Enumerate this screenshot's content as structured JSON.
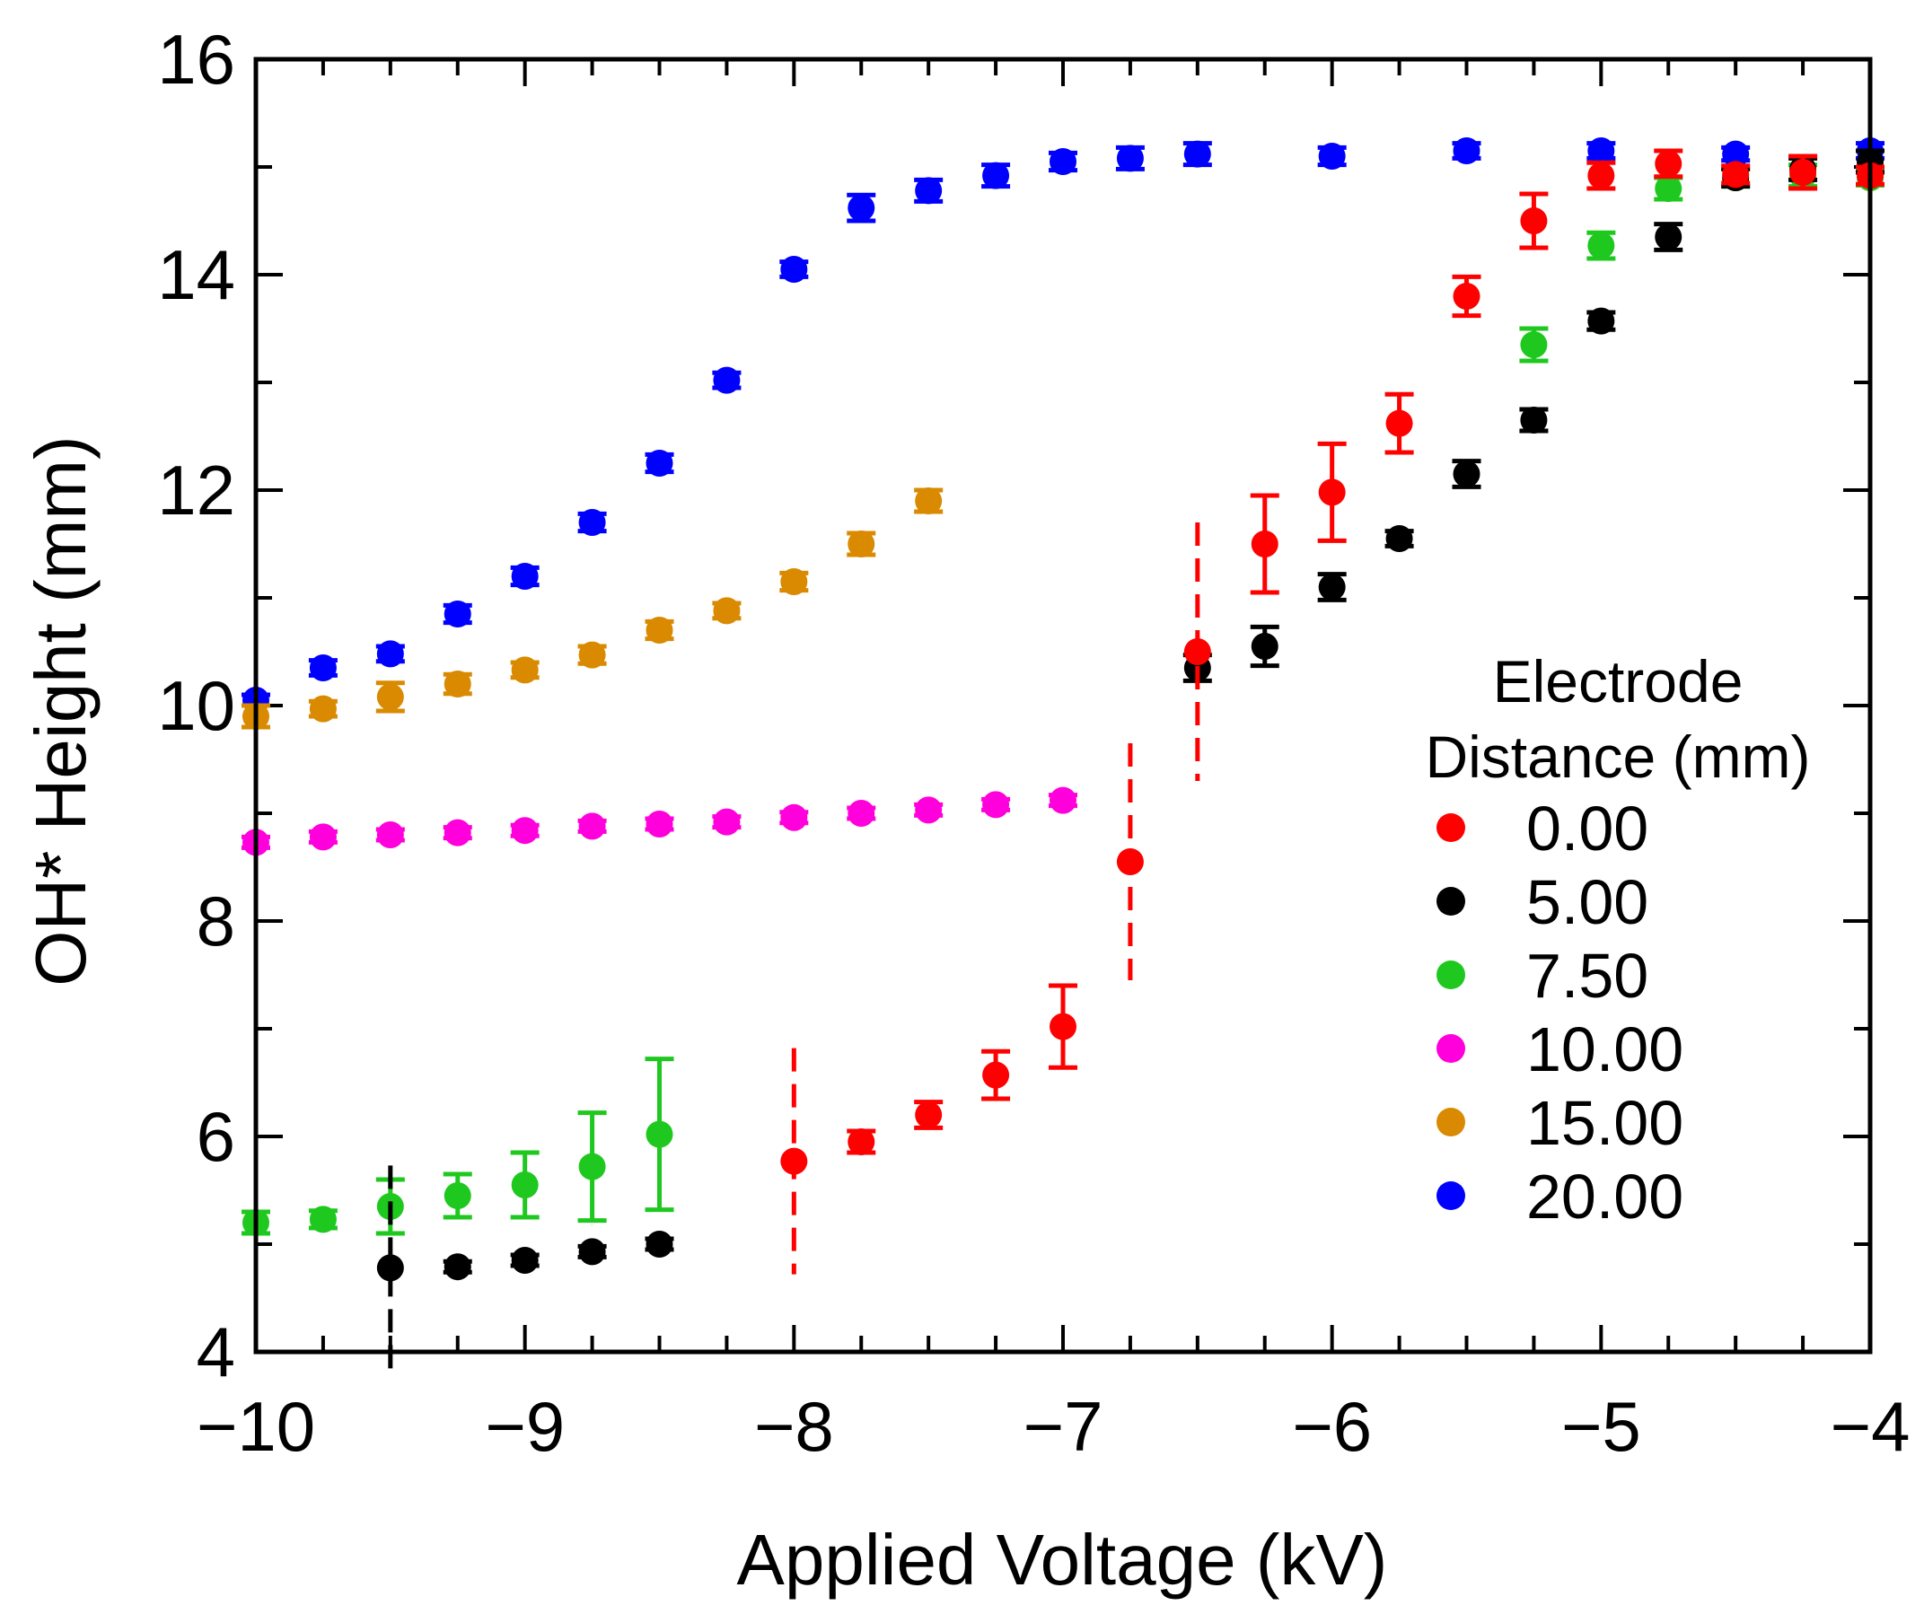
{
  "chart_data": {
    "type": "scatter",
    "xlabel": "Applied Voltage (kV)",
    "ylabel": "OH* Height (mm)",
    "xlim": [
      -10,
      -4
    ],
    "ylim": [
      4,
      16
    ],
    "x_major_ticks": [
      -10,
      -9,
      -8,
      -7,
      -6,
      -5,
      -4
    ],
    "x_tick_labels": [
      "−10",
      "−9",
      "−8",
      "−7",
      "−6",
      "−5",
      "−4"
    ],
    "y_major_ticks": [
      4,
      6,
      8,
      10,
      12,
      14,
      16
    ],
    "y_tick_labels": [
      "4",
      "6",
      "8",
      "10",
      "12",
      "14",
      "16"
    ],
    "legend": {
      "title_lines": [
        "Electrode",
        "Distance (mm)"
      ],
      "position": "right"
    },
    "series": [
      {
        "name": "20.00",
        "color": "#0000ff",
        "points": [
          {
            "x": -10.0,
            "y": 10.05,
            "err": 0.05
          },
          {
            "x": -9.75,
            "y": 10.35,
            "err": 0.07
          },
          {
            "x": -9.5,
            "y": 10.48,
            "err": 0.07
          },
          {
            "x": -9.25,
            "y": 10.85,
            "err": 0.08
          },
          {
            "x": -9.0,
            "y": 11.2,
            "err": 0.08
          },
          {
            "x": -8.75,
            "y": 11.7,
            "err": 0.08
          },
          {
            "x": -8.5,
            "y": 12.25,
            "err": 0.08
          },
          {
            "x": -8.25,
            "y": 13.02,
            "err": 0.07
          },
          {
            "x": -8.0,
            "y": 14.05,
            "err": 0.07
          },
          {
            "x": -7.75,
            "y": 14.62,
            "err": 0.12
          },
          {
            "x": -7.5,
            "y": 14.78,
            "err": 0.1
          },
          {
            "x": -7.25,
            "y": 14.92,
            "err": 0.1
          },
          {
            "x": -7.0,
            "y": 15.05,
            "err": 0.08
          },
          {
            "x": -6.75,
            "y": 15.08,
            "err": 0.1
          },
          {
            "x": -6.5,
            "y": 15.12,
            "err": 0.1
          },
          {
            "x": -6.0,
            "y": 15.1,
            "err": 0.08
          },
          {
            "x": -5.5,
            "y": 15.15,
            "err": 0.07
          },
          {
            "x": -5.0,
            "y": 15.15,
            "err": 0.07
          },
          {
            "x": -4.5,
            "y": 15.12,
            "err": 0.06
          },
          {
            "x": -4.0,
            "y": 15.15,
            "err": 0.07
          }
        ]
      },
      {
        "name": "15.00",
        "color": "#d98a00",
        "points": [
          {
            "x": -10.0,
            "y": 9.9,
            "err": 0.1
          },
          {
            "x": -9.75,
            "y": 9.97,
            "err": 0.07
          },
          {
            "x": -9.5,
            "y": 10.08,
            "err": 0.13
          },
          {
            "x": -9.25,
            "y": 10.2,
            "err": 0.09
          },
          {
            "x": -9.0,
            "y": 10.33,
            "err": 0.07
          },
          {
            "x": -8.75,
            "y": 10.47,
            "err": 0.08
          },
          {
            "x": -8.5,
            "y": 10.7,
            "err": 0.08
          },
          {
            "x": -8.25,
            "y": 10.88,
            "err": 0.07
          },
          {
            "x": -8.0,
            "y": 11.15,
            "err": 0.08
          },
          {
            "x": -7.75,
            "y": 11.5,
            "err": 0.1
          },
          {
            "x": -7.5,
            "y": 11.9,
            "err": 0.1
          }
        ]
      },
      {
        "name": "10.00",
        "color": "#ff00dc",
        "points": [
          {
            "x": -10.0,
            "y": 8.73,
            "err": 0.05
          },
          {
            "x": -9.75,
            "y": 8.78,
            "err": 0.05
          },
          {
            "x": -9.5,
            "y": 8.8,
            "err": 0.05
          },
          {
            "x": -9.25,
            "y": 8.82,
            "err": 0.05
          },
          {
            "x": -9.0,
            "y": 8.84,
            "err": 0.05
          },
          {
            "x": -8.75,
            "y": 8.88,
            "err": 0.05
          },
          {
            "x": -8.5,
            "y": 8.9,
            "err": 0.05
          },
          {
            "x": -8.25,
            "y": 8.92,
            "err": 0.05
          },
          {
            "x": -8.0,
            "y": 8.96,
            "err": 0.05
          },
          {
            "x": -7.75,
            "y": 9.0,
            "err": 0.05
          },
          {
            "x": -7.5,
            "y": 9.03,
            "err": 0.05
          },
          {
            "x": -7.25,
            "y": 9.08,
            "err": 0.05
          },
          {
            "x": -7.0,
            "y": 9.12,
            "err": 0.05
          }
        ]
      },
      {
        "name": "7.50",
        "color": "#1ec81e",
        "points": [
          {
            "x": -10.0,
            "y": 5.2,
            "err": 0.1
          },
          {
            "x": -9.75,
            "y": 5.23,
            "err": 0.08
          },
          {
            "x": -9.5,
            "y": 5.35,
            "err": 0.25
          },
          {
            "x": -9.25,
            "y": 5.45,
            "err": 0.2
          },
          {
            "x": -9.0,
            "y": 5.55,
            "err": 0.3
          },
          {
            "x": -8.75,
            "y": 5.72,
            "err": 0.5
          },
          {
            "x": -8.5,
            "y": 6.02,
            "err": 0.7
          },
          {
            "x": -5.25,
            "y": 13.35,
            "err": 0.15
          },
          {
            "x": -5.0,
            "y": 14.27,
            "err": 0.12
          },
          {
            "x": -4.75,
            "y": 14.8,
            "err": 0.1
          },
          {
            "x": -4.5,
            "y": 14.9,
            "err": 0.08
          },
          {
            "x": -4.25,
            "y": 14.92,
            "err": 0.1
          },
          {
            "x": -4.0,
            "y": 14.9,
            "err": 0.07
          }
        ]
      },
      {
        "name": "5.00",
        "color": "#000000",
        "points": [
          {
            "x": -9.5,
            "y": 4.78,
            "err": 0.95
          },
          {
            "x": -9.25,
            "y": 4.79,
            "err": 0.05
          },
          {
            "x": -9.0,
            "y": 4.85,
            "err": 0.05
          },
          {
            "x": -8.75,
            "y": 4.93,
            "err": 0.05
          },
          {
            "x": -8.5,
            "y": 5.0,
            "err": 0.05
          },
          {
            "x": -6.5,
            "y": 10.35,
            "err": 0.12
          },
          {
            "x": -6.25,
            "y": 10.55,
            "err": 0.18
          },
          {
            "x": -6.0,
            "y": 11.1,
            "err": 0.12
          },
          {
            "x": -5.75,
            "y": 11.55,
            "err": 0.07
          },
          {
            "x": -5.5,
            "y": 12.15,
            "err": 0.12
          },
          {
            "x": -5.25,
            "y": 12.65,
            "err": 0.1
          },
          {
            "x": -5.0,
            "y": 13.57,
            "err": 0.08
          },
          {
            "x": -4.75,
            "y": 14.35,
            "err": 0.12
          },
          {
            "x": -4.5,
            "y": 14.9,
            "err": 0.08
          },
          {
            "x": -4.25,
            "y": 14.98,
            "err": 0.1
          },
          {
            "x": -4.0,
            "y": 15.05,
            "err": 0.1
          }
        ]
      },
      {
        "name": "0.00",
        "color": "#ff0000",
        "points": [
          {
            "x": -8.0,
            "y": 5.77,
            "err": 1.05
          },
          {
            "x": -7.75,
            "y": 5.95,
            "err": 0.1
          },
          {
            "x": -7.5,
            "y": 6.2,
            "err": 0.12
          },
          {
            "x": -7.25,
            "y": 6.57,
            "err": 0.22
          },
          {
            "x": -7.0,
            "y": 7.02,
            "err": 0.38
          },
          {
            "x": -6.75,
            "y": 8.55,
            "err": 1.1
          },
          {
            "x": -6.5,
            "y": 10.5,
            "err": 1.2
          },
          {
            "x": -6.25,
            "y": 11.5,
            "err": 0.45
          },
          {
            "x": -6.0,
            "y": 11.98,
            "err": 0.45
          },
          {
            "x": -5.75,
            "y": 12.62,
            "err": 0.27
          },
          {
            "x": -5.5,
            "y": 13.8,
            "err": 0.18
          },
          {
            "x": -5.25,
            "y": 14.5,
            "err": 0.25
          },
          {
            "x": -5.0,
            "y": 14.92,
            "err": 0.12
          },
          {
            "x": -4.75,
            "y": 15.03,
            "err": 0.12
          },
          {
            "x": -4.5,
            "y": 14.93,
            "err": 0.08
          },
          {
            "x": -4.25,
            "y": 14.95,
            "err": 0.15
          },
          {
            "x": -4.0,
            "y": 14.92,
            "err": 0.08
          }
        ]
      }
    ]
  }
}
